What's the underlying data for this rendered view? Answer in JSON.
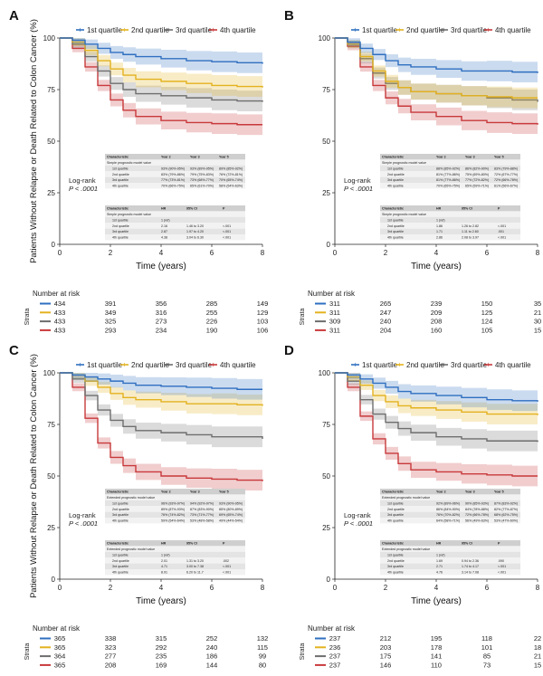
{
  "colors": {
    "q1": "#2f6fc0",
    "q2": "#e3b21f",
    "q3": "#6e6e6e",
    "q4": "#c8393b"
  },
  "chart_data": [
    {
      "panel": "A",
      "type": "line",
      "subtype": "kaplan-meier",
      "ylabel": "Patients Without Relapse or Death Related to Colon Cancer (%)",
      "xlabel": "Time (years)",
      "xlim": [
        0,
        8
      ],
      "ylim": [
        0,
        100
      ],
      "xticks": [
        0,
        2,
        4,
        6,
        8
      ],
      "yticks": [
        0,
        25,
        50,
        75,
        100
      ],
      "legend": [
        "1st quartile",
        "2nd quartile",
        "3rd quartile",
        "4th quartile"
      ],
      "legend_position": "top",
      "pvalue_lines": [
        "Log-rank",
        "P < .0001"
      ],
      "x": [
        0,
        0.5,
        1,
        1.5,
        2,
        2.5,
        3,
        4,
        5,
        6,
        7,
        8
      ],
      "series": [
        {
          "name": "1st quartile",
          "values": [
            100,
            99,
            97,
            95,
            93,
            92,
            91,
            90,
            89,
            88.5,
            88,
            87.5
          ]
        },
        {
          "name": "2nd quartile",
          "values": [
            100,
            98,
            94,
            89,
            85,
            82,
            80,
            79,
            78,
            77,
            76.5,
            76
          ]
        },
        {
          "name": "3rd quartile",
          "values": [
            100,
            97,
            91,
            84,
            78,
            75,
            73,
            72,
            71,
            70,
            69.5,
            69
          ]
        },
        {
          "name": "4th quartile",
          "values": [
            100,
            95,
            86,
            77,
            70,
            65,
            62,
            60,
            59,
            58.5,
            58,
            58
          ]
        }
      ],
      "summary_table": {
        "columns": [
          "Characteristic",
          "Year 2",
          "Year 3",
          "Year 5"
        ],
        "group": "Simple prognostic model value",
        "rows": [
          [
            "1st quartile",
            "93% (90%-95%)",
            "93% (89%-95%)",
            "89% (85%-92%)"
          ],
          [
            "2nd quartile",
            "83% (79%-86%)",
            "79% (75%-83%)",
            "76% (72%-81%)"
          ],
          [
            "3rd quartile",
            "77% (73%-81%)",
            "73% (68%-77%)",
            "70% (65%-74%)"
          ],
          [
            "4th quartile",
            "70% (66%-75%)",
            "65% (61%-70%)",
            "58% (54%-63%)"
          ]
        ]
      },
      "hr_table": {
        "columns": [
          "Characteristic",
          "HR",
          "95% CI",
          "P"
        ],
        "group": "Simple prognostic model value",
        "rows": [
          [
            "1st quartile",
            "1 (ref)",
            "",
            ""
          ],
          [
            "2nd quartile",
            "2.16",
            "1.46 to 3.20",
            "<.001"
          ],
          [
            "3rd quartile",
            "2.87",
            "1.97 to 4.20",
            "<.001"
          ],
          [
            "4th quartile",
            "4.38",
            "3.04 to 6.30",
            "<.001"
          ]
        ]
      },
      "risk_table": {
        "title": "Number at risk",
        "strata_label": "Strata",
        "rows": [
          [
            434,
            391,
            356,
            285,
            149
          ],
          [
            433,
            349,
            316,
            255,
            129
          ],
          [
            433,
            325,
            273,
            226,
            103
          ],
          [
            433,
            293,
            234,
            190,
            106
          ]
        ]
      }
    },
    {
      "panel": "B",
      "type": "line",
      "subtype": "kaplan-meier",
      "ylabel": "",
      "xlabel": "Time (years)",
      "xlim": [
        0,
        8
      ],
      "ylim": [
        0,
        100
      ],
      "xticks": [
        0,
        2,
        4,
        6,
        8
      ],
      "yticks": [
        0,
        25,
        50,
        75,
        100
      ],
      "legend": [
        "1st quartile",
        "2nd quartile",
        "3rd quartile",
        "4th quartile"
      ],
      "legend_position": "top",
      "pvalue_lines": [
        "Log-rank",
        "P < .0001"
      ],
      "x": [
        0,
        0.5,
        1,
        1.5,
        2,
        2.5,
        3,
        4,
        5,
        6,
        7,
        8
      ],
      "series": [
        {
          "name": "1st quartile",
          "values": [
            100,
            98,
            95,
            92,
            89,
            87,
            86,
            85,
            84,
            84,
            83.5,
            83
          ]
        },
        {
          "name": "2nd quartile",
          "values": [
            100,
            97,
            91,
            84,
            79,
            76,
            74,
            73,
            72,
            71.5,
            71,
            71
          ]
        },
        {
          "name": "3rd quartile",
          "values": [
            100,
            97,
            90,
            83,
            78,
            76,
            74,
            73,
            72,
            71,
            70,
            69
          ]
        },
        {
          "name": "4th quartile",
          "values": [
            100,
            96,
            86,
            77,
            71,
            67,
            64,
            62,
            60,
            59,
            58.5,
            58
          ]
        }
      ],
      "summary_table": {
        "columns": [
          "Characteristic",
          "Year 2",
          "Year 3",
          "Year 5"
        ],
        "group": "Simple prognostic model value",
        "rows": [
          [
            "1st quartile",
            "88% (85%-92%)",
            "86% (82%-90%)",
            "83% (79%-88%)"
          ],
          [
            "2nd quartile",
            "81% (77%-86%)",
            "75% (69%-80%)",
            "72% (67%-77%)"
          ],
          [
            "3rd quartile",
            "81% (77%-86%)",
            "77% (72%-82%)",
            "72% (66%-78%)"
          ],
          [
            "4th quartile",
            "70% (65%-75%)",
            "65% (59%-71%)",
            "61% (56%-67%)"
          ]
        ]
      },
      "hr_table": {
        "columns": [
          "Characteristic",
          "HR",
          "95% CI",
          "P"
        ],
        "group": "Simple prognostic model value",
        "rows": [
          [
            "1st quartile",
            "1 (ref)",
            "",
            ""
          ],
          [
            "2nd quartile",
            "1.86",
            "1.26 to 2.82",
            "<.001"
          ],
          [
            "3rd quartile",
            "1.71",
            "1.11 to 2.60",
            ".001"
          ],
          [
            "4th quartile",
            "2.86",
            "2.08 to 3.97",
            "<.001"
          ]
        ]
      },
      "risk_table": {
        "title": "Number at risk",
        "strata_label": "Strata",
        "rows": [
          [
            311,
            265,
            239,
            150,
            35
          ],
          [
            311,
            247,
            209,
            125,
            21
          ],
          [
            309,
            240,
            208,
            124,
            30
          ],
          [
            311,
            204,
            160,
            105,
            15
          ]
        ]
      }
    },
    {
      "panel": "C",
      "type": "line",
      "subtype": "kaplan-meier",
      "ylabel": "Patients Without Relapse or Death Related to Colon Cancer (%)",
      "xlabel": "Time (years)",
      "xlim": [
        0,
        8
      ],
      "ylim": [
        0,
        100
      ],
      "xticks": [
        0,
        2,
        4,
        6,
        8
      ],
      "yticks": [
        0,
        25,
        50,
        75,
        100
      ],
      "legend": [
        "1st quartile",
        "2nd quartile",
        "3rd quartile",
        "4th quartile"
      ],
      "legend_position": "top",
      "pvalue_lines": [
        "Log-rank",
        "P < .0001"
      ],
      "x": [
        0,
        0.5,
        1,
        1.5,
        2,
        2.5,
        3,
        4,
        5,
        6,
        7,
        8
      ],
      "series": [
        {
          "name": "1st quartile",
          "values": [
            100,
            99,
            98,
            97,
            96,
            95,
            94,
            93.5,
            93,
            92.5,
            92,
            92
          ]
        },
        {
          "name": "2nd quartile",
          "values": [
            100,
            99,
            96,
            93,
            90,
            88,
            87,
            86,
            85,
            85,
            84.5,
            84
          ]
        },
        {
          "name": "3rd quartile",
          "values": [
            100,
            97,
            89,
            82,
            77,
            74,
            72,
            71,
            70,
            69,
            69,
            68
          ]
        },
        {
          "name": "4th quartile",
          "values": [
            100,
            93,
            78,
            66,
            59,
            55,
            52,
            50,
            49,
            48.5,
            48,
            47.5
          ]
        }
      ],
      "summary_table": {
        "columns": [
          "Characteristic",
          "Year 2",
          "Year 3",
          "Year 5"
        ],
        "group": "Extended prognostic model value",
        "rows": [
          [
            "1st quartile",
            "96% (93%-97%)",
            "94% (92%-97%)",
            "93% (90%-95%)"
          ],
          [
            "2nd quartile",
            "89% (87%-93%)",
            "87% (83%-90%)",
            "85% (80%-89%)"
          ],
          [
            "3rd quartile",
            "76% (74%-82%)",
            "73% (71%-77%)",
            "69% (65%-74%)"
          ],
          [
            "4th quartile",
            "59% (54%-64%)",
            "53% (48%-58%)",
            "49% (44%-54%)"
          ]
        ]
      },
      "hr_table": {
        "columns": [
          "Characteristic",
          "HR",
          "95% CI",
          "P"
        ],
        "group": "Extended prognostic model value",
        "rows": [
          [
            "1st quartile",
            "1 (ref)",
            "",
            ""
          ],
          [
            "2nd quartile",
            "2.01",
            "1.31 to 3.20",
            ".002"
          ],
          [
            "3rd quartile",
            "4.71",
            "3.00 to 7.38",
            "<.001"
          ],
          [
            "4th quartile",
            "8.91",
            "6.20 to 11.7",
            "<.001"
          ]
        ]
      },
      "risk_table": {
        "title": "Number at risk",
        "strata_label": "Strata",
        "rows": [
          [
            365,
            338,
            315,
            252,
            132
          ],
          [
            365,
            323,
            292,
            240,
            115
          ],
          [
            364,
            277,
            235,
            186,
            99
          ],
          [
            365,
            208,
            169,
            144,
            80
          ]
        ]
      }
    },
    {
      "panel": "D",
      "type": "line",
      "subtype": "kaplan-meier",
      "ylabel": "",
      "xlabel": "Time (years)",
      "xlim": [
        0,
        8
      ],
      "ylim": [
        0,
        100
      ],
      "xticks": [
        0,
        2,
        4,
        6,
        8
      ],
      "yticks": [
        0,
        25,
        50,
        75,
        100
      ],
      "legend": [
        "1st quartile",
        "2nd quartile",
        "3rd quartile",
        "4th quartile"
      ],
      "legend_position": "top",
      "pvalue_lines": [
        "Log-rank",
        "P < .0001"
      ],
      "x": [
        0,
        0.5,
        1,
        1.5,
        2,
        2.5,
        3,
        4,
        5,
        6,
        7,
        8
      ],
      "series": [
        {
          "name": "1st quartile",
          "values": [
            100,
            99,
            97,
            95,
            93,
            91,
            90,
            89,
            88,
            87,
            86.5,
            86
          ]
        },
        {
          "name": "2nd quartile",
          "values": [
            100,
            98,
            94,
            89,
            86,
            84,
            83,
            82,
            81,
            80,
            80,
            79.5
          ]
        },
        {
          "name": "3rd quartile",
          "values": [
            100,
            96,
            87,
            80,
            76,
            73,
            71,
            69,
            68,
            67,
            67,
            66.5
          ]
        },
        {
          "name": "4th quartile",
          "values": [
            100,
            93,
            79,
            68,
            61,
            56,
            53,
            52,
            51,
            50.5,
            50,
            50
          ]
        }
      ],
      "summary_table": {
        "columns": [
          "Characteristic",
          "Year 2",
          "Year 3",
          "Year 5"
        ],
        "group": "Extended prognostic model value",
        "rows": [
          [
            "1st quartile",
            "92% (89%-96%)",
            "90% (85%-93%)",
            "87% (83%-92%)"
          ],
          [
            "2nd quartile",
            "86% (84%-90%)",
            "84% (78%-88%)",
            "82% (77%-87%)"
          ],
          [
            "3rd quartile",
            "76% (70%-82%)",
            "72% (66%-78%)",
            "68% (62%-75%)"
          ],
          [
            "4th quartile",
            "64% (58%-71%)",
            "56% (49%-63%)",
            "53% (47%-60%)"
          ]
        ]
      },
      "hr_table": {
        "columns": [
          "Characteristic",
          "HR",
          "95% CI",
          "P"
        ],
        "group": "Extended prognostic model value",
        "rows": [
          [
            "1st quartile",
            "1 (ref)",
            "",
            ""
          ],
          [
            "2nd quartile",
            "1.69",
            "0.94 to 2.36",
            ".090"
          ],
          [
            "3rd quartile",
            "2.71",
            "1.74 to 4.17",
            "<.001"
          ],
          [
            "4th quartile",
            "4.76",
            "3.14 to 7.08",
            "<.001"
          ]
        ]
      },
      "risk_table": {
        "title": "Number at risk",
        "strata_label": "Strata",
        "rows": [
          [
            237,
            212,
            195,
            118,
            22
          ],
          [
            236,
            203,
            178,
            101,
            18
          ],
          [
            237,
            175,
            141,
            85,
            21
          ],
          [
            237,
            146,
            110,
            73,
            15
          ]
        ]
      }
    }
  ]
}
